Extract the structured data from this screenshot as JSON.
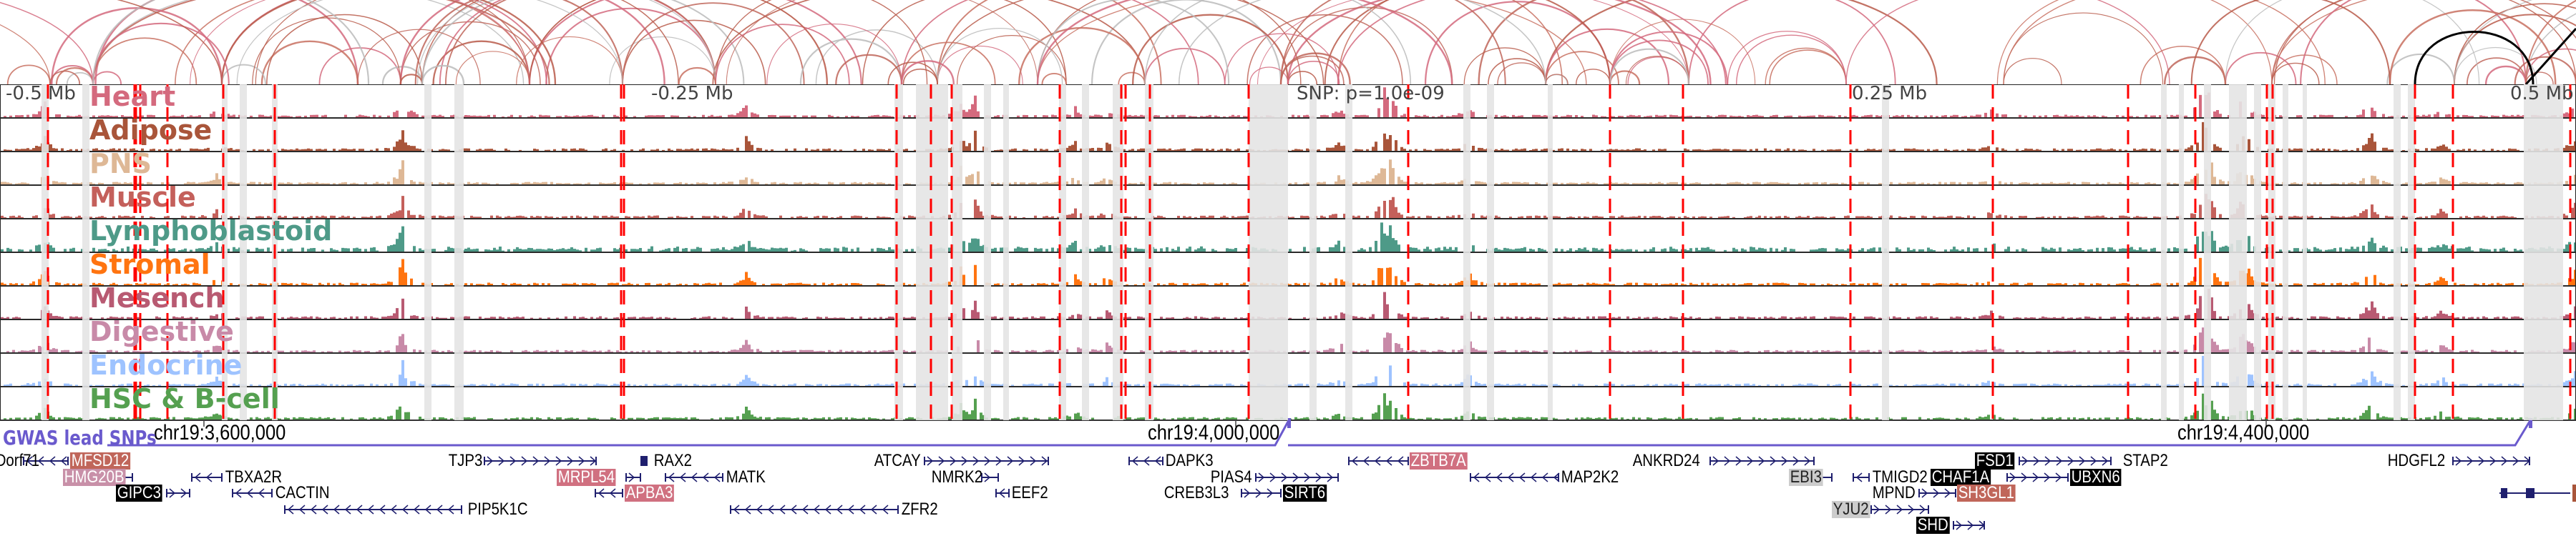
{
  "tracks": [
    {
      "name": "Heart",
      "color": "#d46a7e"
    },
    {
      "name": "Adipose",
      "color": "#a9553a"
    },
    {
      "name": "PNS",
      "color": "#deb896"
    },
    {
      "name": "Muscle",
      "color": "#c4605b"
    },
    {
      "name": "Lymphoblastoid",
      "color": "#4e9a88"
    },
    {
      "name": "Stromal",
      "color": "#ff7410"
    },
    {
      "name": "Mesench",
      "color": "#b85a72"
    },
    {
      "name": "Digestive",
      "color": "#c88aa8"
    },
    {
      "name": "Endocrine",
      "color": "#9ec3ff"
    },
    {
      "name": "HSC & B-cell",
      "color": "#55a050"
    }
  ],
  "axis": {
    "left": "-0.5 Mb",
    "left_mid": "-0.25 Mb",
    "snp": "SNP: p=1.0e-09",
    "right_mid": "0.25 Mb",
    "right": "0.5 Mb"
  },
  "coordinates": [
    "chr19:3,600,000",
    "chr19:4,000,000",
    "chr19:4,400,000"
  ],
  "gwas": {
    "label": "GWAS lead SNPs",
    "color": "#6a5acd"
  },
  "colors": {
    "enhancer_line": "#ff0000",
    "highlight": "#e4e4e4",
    "gene": "#1f1f6e"
  },
  "genes": [
    {
      "name": "Dorf71"
    },
    {
      "name": "MFSD12",
      "box": "#c0665a"
    },
    {
      "name": "TJP3"
    },
    {
      "name": "RAX2"
    },
    {
      "name": "ATCAY"
    },
    {
      "name": "DAPK3"
    },
    {
      "name": "ZBTB7A",
      "box": "#d07080"
    },
    {
      "name": "ANKRD24"
    },
    {
      "name": "FSD1",
      "box": "#000000"
    },
    {
      "name": "STAP2"
    },
    {
      "name": "HDGFL2"
    },
    {
      "name": "HMG20B",
      "box": "#c890a8"
    },
    {
      "name": "TBXA2R"
    },
    {
      "name": "MRPL54",
      "box": "#d07080"
    },
    {
      "name": "MATK"
    },
    {
      "name": "NMRK2"
    },
    {
      "name": "PIAS4"
    },
    {
      "name": "MAP2K2"
    },
    {
      "name": "EBI3",
      "box": "#cccccc"
    },
    {
      "name": "TMIGD2"
    },
    {
      "name": "CHAF1A",
      "box": "#000000"
    },
    {
      "name": "UBXN6",
      "box": "#000000"
    },
    {
      "name": "GIPC3",
      "box": "#000000"
    },
    {
      "name": "CACTIN"
    },
    {
      "name": "APBA3",
      "box": "#d07080"
    },
    {
      "name": "EEF2"
    },
    {
      "name": "CREB3L3"
    },
    {
      "name": "SIRT6",
      "box": "#000000"
    },
    {
      "name": "MPND"
    },
    {
      "name": "SH3GL1",
      "box": "#c0665a"
    },
    {
      "name": "PIP5K1C"
    },
    {
      "name": "ZFR2"
    },
    {
      "name": "YJU2",
      "box": "#cccccc"
    },
    {
      "name": "SHD",
      "box": "#000000"
    }
  ]
}
